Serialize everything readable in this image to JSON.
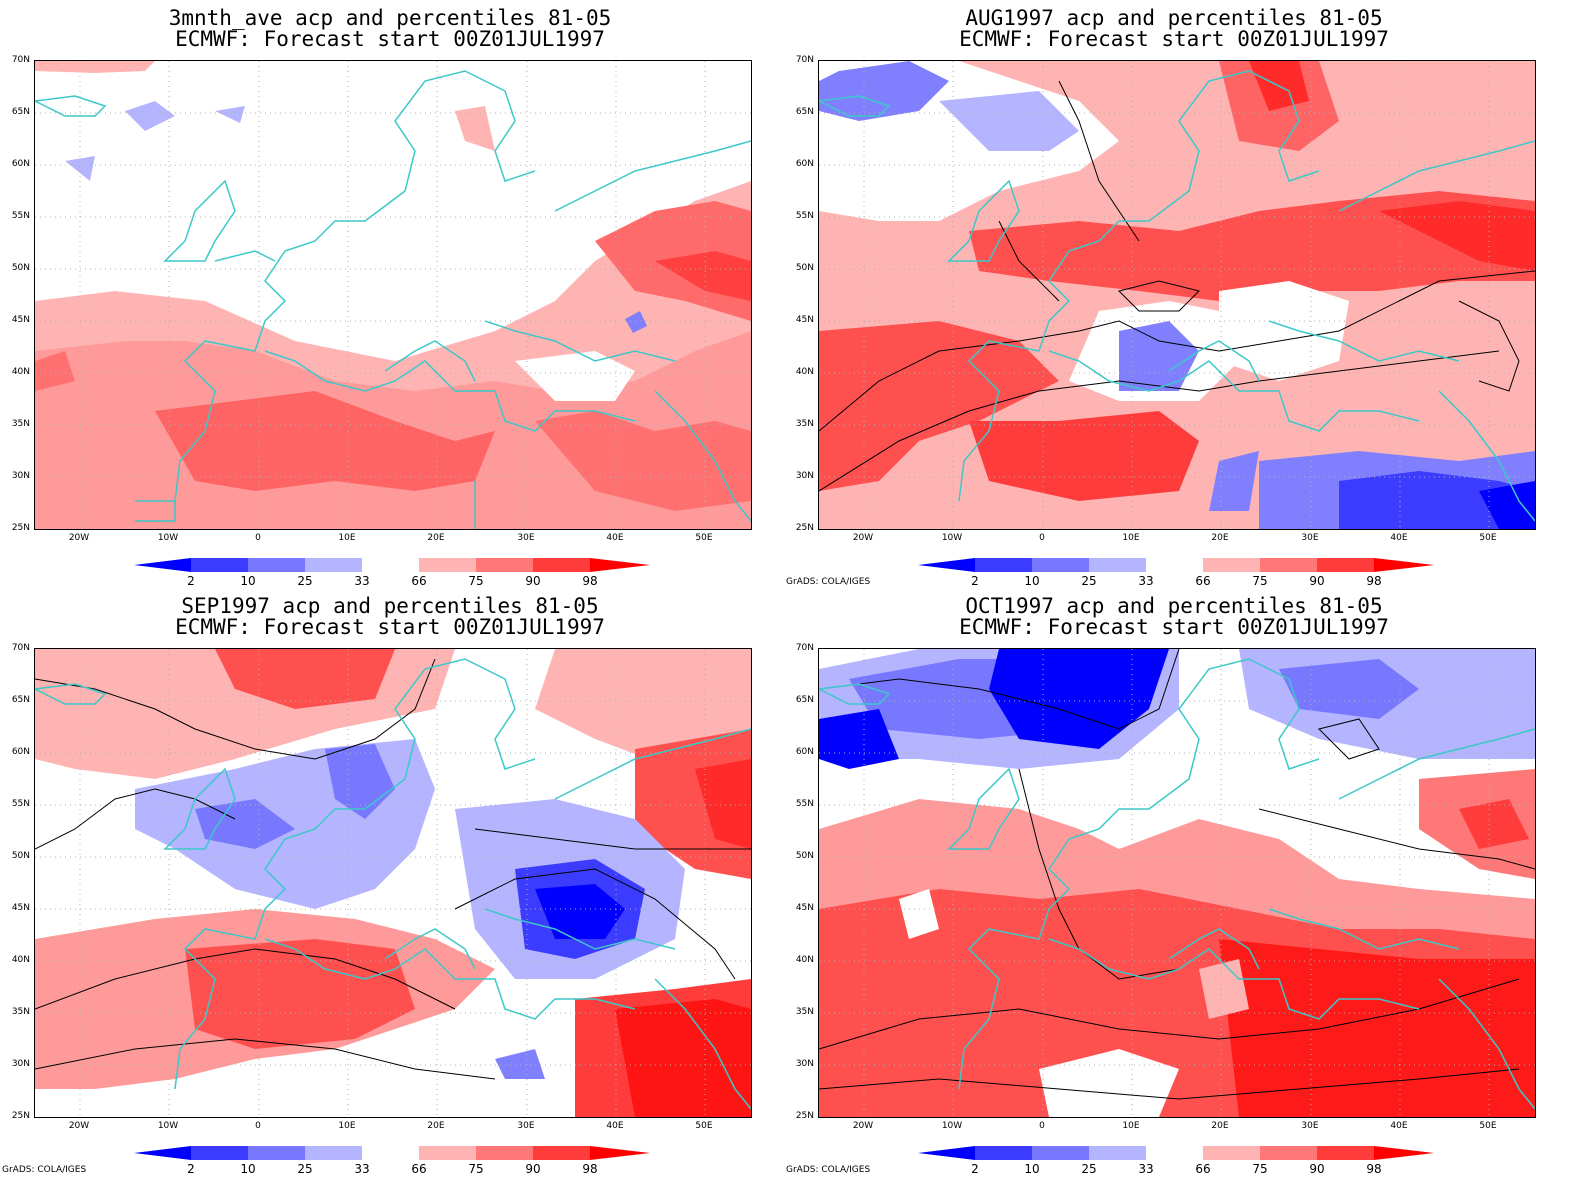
{
  "panels": [
    {
      "title_line1": "3mnth_ave acp and percentiles 81-05",
      "title_line2": "ECMWF: Forecast start 00Z01JUL1997",
      "credit": ""
    },
    {
      "title_line1": "AUG1997 acp and percentiles 81-05",
      "title_line2": "ECMWF: Forecast start 00Z01JUL1997",
      "credit": "GrADS: COLA/IGES"
    },
    {
      "title_line1": "SEP1997 acp and percentiles 81-05",
      "title_line2": "ECMWF: Forecast start 00Z01JUL1997",
      "credit": "GrADS: COLA/IGES"
    },
    {
      "title_line1": "OCT1997 acp and percentiles 81-05",
      "title_line2": "ECMWF: Forecast start 00Z01JUL1997",
      "credit": "GrADS: COLA/IGES"
    }
  ],
  "lat_labels": [
    "70N",
    "65N",
    "60N",
    "55N",
    "50N",
    "45N",
    "40N",
    "35N",
    "30N",
    "25N"
  ],
  "lon_labels": [
    "20W",
    "10W",
    "0",
    "10E",
    "20E",
    "30E",
    "40E",
    "50E"
  ],
  "colorbar": {
    "labels": [
      "2",
      "10",
      "25",
      "33",
      "66",
      "75",
      "90",
      "98"
    ],
    "colors": [
      "#0000ff",
      "#3c3cff",
      "#7878ff",
      "#b4b4ff",
      "#ffffff",
      "#ffb4b4",
      "#ff7878",
      "#ff3c3c",
      "#ff0000"
    ]
  },
  "colors": {
    "coast": "#3cc8c8",
    "contour": "#000000",
    "grid": "#b0b0b0"
  }
}
